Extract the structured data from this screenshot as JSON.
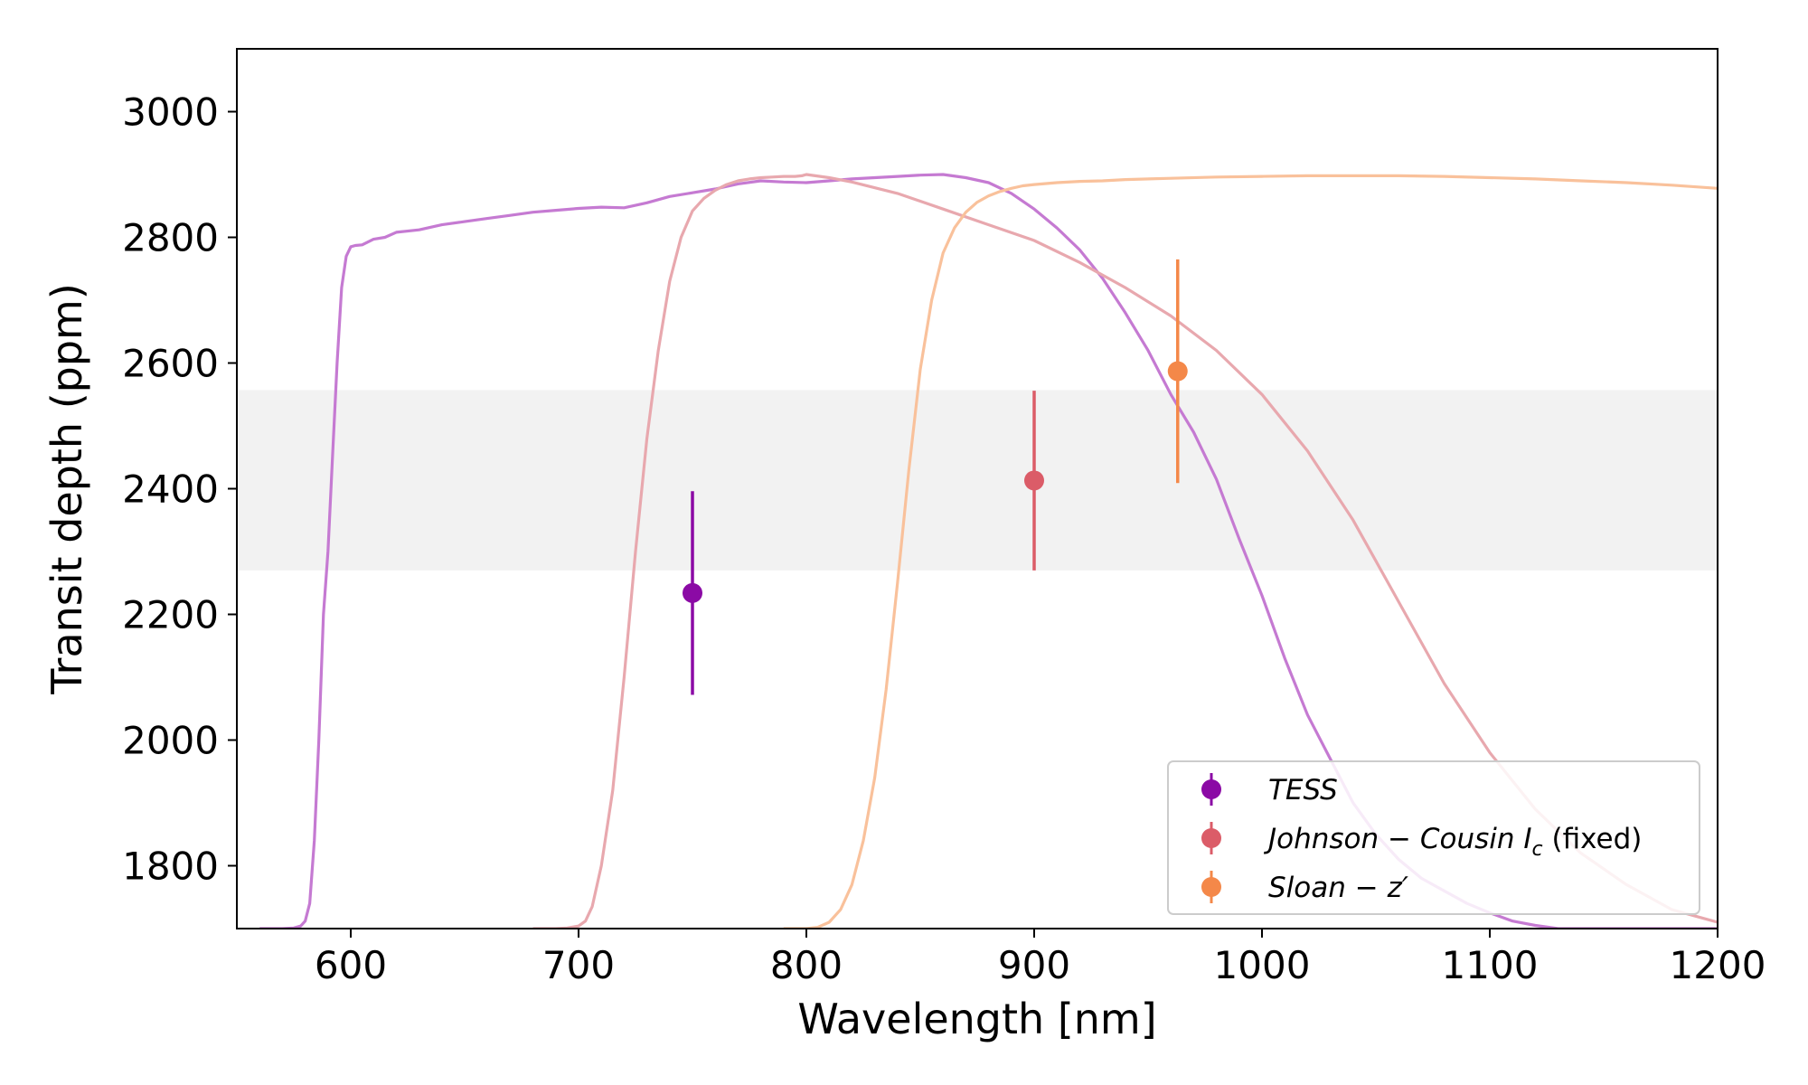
{
  "chart_data": {
    "type": "scatter",
    "title": "",
    "xlabel": "Wavelength [nm]",
    "ylabel": "Transit depth (ppm)",
    "xlim": [
      550,
      1200
    ],
    "ylim": [
      1700,
      3100
    ],
    "xticks": [
      600,
      700,
      800,
      900,
      1000,
      1100,
      1200
    ],
    "yticks": [
      1800,
      2000,
      2200,
      2400,
      2600,
      2800,
      3000
    ],
    "xtick_labels": [
      "600",
      "700",
      "800",
      "900",
      "1000",
      "1100",
      "1200"
    ],
    "ytick_labels": [
      "1800",
      "2000",
      "2200",
      "2400",
      "2600",
      "2800",
      "3000"
    ],
    "band": {
      "ymin": 2270,
      "ymax": 2557,
      "color": "#f2f2f2"
    },
    "points": [
      {
        "name": "TESS",
        "x": 750,
        "y": 2234,
        "yerr": 162,
        "color": "#8b0aa5"
      },
      {
        "name": "Johnson-Cousin Ic (fixed)",
        "x": 900,
        "y": 2413,
        "yerr": 143,
        "color": "#db5c68"
      },
      {
        "name": "Sloan-z'",
        "x": 963,
        "y": 2587,
        "yerr": 178,
        "color": "#f48849"
      }
    ],
    "curves": [
      {
        "name": "TESS response",
        "color": "#c57ad2",
        "x": [
          560,
          570,
          575,
          578,
          580,
          582,
          584,
          586,
          588,
          590,
          592,
          594,
          596,
          598,
          600,
          602,
          605,
          610,
          615,
          620,
          630,
          640,
          650,
          660,
          670,
          680,
          690,
          700,
          710,
          720,
          730,
          740,
          750,
          760,
          770,
          780,
          790,
          800,
          810,
          820,
          830,
          840,
          850,
          860,
          870,
          880,
          890,
          900,
          910,
          920,
          930,
          940,
          950,
          960,
          970,
          980,
          990,
          1000,
          1010,
          1020,
          1030,
          1040,
          1050,
          1060,
          1070,
          1080,
          1090,
          1100,
          1110,
          1120,
          1130,
          1150,
          1200
        ],
        "y": [
          1700,
          1700,
          1701,
          1704,
          1712,
          1740,
          1840,
          2000,
          2200,
          2300,
          2450,
          2600,
          2720,
          2770,
          2785,
          2787,
          2788,
          2797,
          2800,
          2808,
          2812,
          2820,
          2825,
          2830,
          2835,
          2840,
          2843,
          2846,
          2848,
          2847,
          2855,
          2865,
          2871,
          2877,
          2885,
          2890,
          2888,
          2887,
          2890,
          2893,
          2895,
          2897,
          2899,
          2900,
          2895,
          2887,
          2870,
          2845,
          2815,
          2780,
          2735,
          2680,
          2620,
          2550,
          2490,
          2415,
          2320,
          2230,
          2130,
          2040,
          1970,
          1900,
          1850,
          1810,
          1780,
          1760,
          1740,
          1725,
          1712,
          1705,
          1700,
          1700,
          1700
        ]
      },
      {
        "name": "Johnson-Cousin Ic response",
        "color": "#e8a8ae",
        "x": [
          680,
          690,
          695,
          700,
          703,
          706,
          710,
          715,
          720,
          725,
          730,
          735,
          740,
          745,
          750,
          755,
          760,
          765,
          770,
          775,
          780,
          785,
          790,
          795,
          798,
          800,
          810,
          820,
          840,
          860,
          880,
          900,
          920,
          940,
          960,
          980,
          1000,
          1020,
          1040,
          1060,
          1080,
          1100,
          1120,
          1140,
          1160,
          1180,
          1200
        ],
        "y": [
          1700,
          1700,
          1701,
          1704,
          1712,
          1735,
          1800,
          1920,
          2100,
          2300,
          2480,
          2620,
          2730,
          2800,
          2842,
          2862,
          2875,
          2884,
          2890,
          2893,
          2895,
          2896,
          2897,
          2897,
          2898,
          2900,
          2895,
          2888,
          2870,
          2845,
          2820,
          2795,
          2760,
          2720,
          2675,
          2620,
          2550,
          2460,
          2350,
          2220,
          2090,
          1980,
          1890,
          1820,
          1770,
          1730,
          1710
        ]
      },
      {
        "name": "Sloan-z' response",
        "color": "#f9c19b",
        "x": [
          790,
          800,
          805,
          810,
          815,
          820,
          825,
          830,
          835,
          840,
          845,
          850,
          855,
          860,
          865,
          870,
          875,
          880,
          885,
          890,
          895,
          900,
          910,
          920,
          930,
          940,
          960,
          980,
          1000,
          1020,
          1040,
          1060,
          1080,
          1100,
          1120,
          1140,
          1160,
          1180,
          1200
        ],
        "y": [
          1700,
          1700,
          1702,
          1710,
          1730,
          1770,
          1840,
          1940,
          2080,
          2250,
          2430,
          2590,
          2700,
          2775,
          2815,
          2840,
          2856,
          2866,
          2873,
          2878,
          2882,
          2884,
          2887,
          2889,
          2890,
          2892,
          2894,
          2896,
          2897,
          2898,
          2898,
          2898,
          2897,
          2895,
          2893,
          2890,
          2887,
          2883,
          2878
        ]
      }
    ],
    "legend": {
      "position": "bottom-right",
      "entries": [
        {
          "label": "TESS",
          "color": "#8b0aa5"
        },
        {
          "label": "Johnson − Cousin I",
          "sub": "c",
          "suffix": " (fixed)",
          "color": "#db5c68"
        },
        {
          "label": "Sloan − z′",
          "color": "#f48849"
        }
      ]
    }
  }
}
